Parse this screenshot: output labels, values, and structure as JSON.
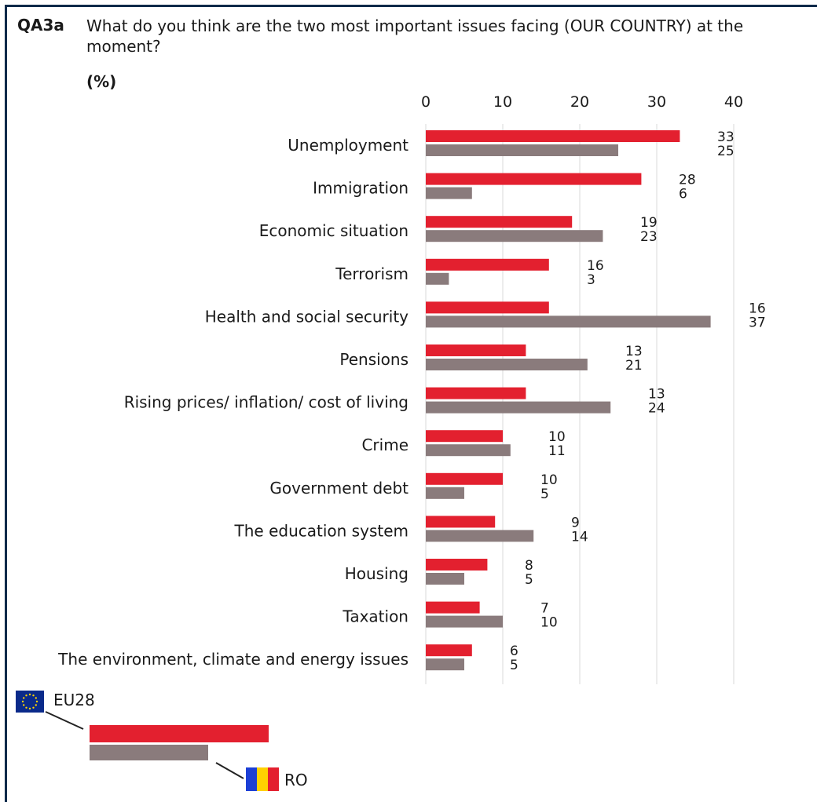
{
  "question": {
    "code": "QA3a",
    "text": "What do you think are the two most important issues facing (OUR COUNTRY) at the moment?",
    "unit": "(%)"
  },
  "chart_data": {
    "type": "bar",
    "orientation": "horizontal",
    "categories": [
      "Unemployment",
      "Immigration",
      "Economic situation",
      "Terrorism",
      "Health and social security",
      "Pensions",
      "Rising prices/ inflation/ cost of living",
      "Crime",
      "Government debt",
      "The education system",
      "Housing",
      "Taxation",
      "The environment, climate and energy issues"
    ],
    "series": [
      {
        "name": "EU28",
        "color": "#e3202f",
        "values": [
          33,
          28,
          19,
          16,
          16,
          13,
          13,
          10,
          10,
          9,
          8,
          7,
          6
        ]
      },
      {
        "name": "RO",
        "color": "#8a7b7c",
        "values": [
          25,
          6,
          23,
          3,
          37,
          21,
          24,
          11,
          5,
          14,
          5,
          10,
          5
        ]
      }
    ],
    "xlim": [
      0,
      40
    ],
    "xticks": [
      0,
      10,
      20,
      30,
      40
    ],
    "grid": true,
    "legend": {
      "position": "bottom-left"
    }
  },
  "legend": {
    "eu_label": "EU28",
    "ro_label": "RO",
    "eu_flag_icon": "eu-flag-icon",
    "ro_flag_icon": "romania-flag-icon"
  }
}
